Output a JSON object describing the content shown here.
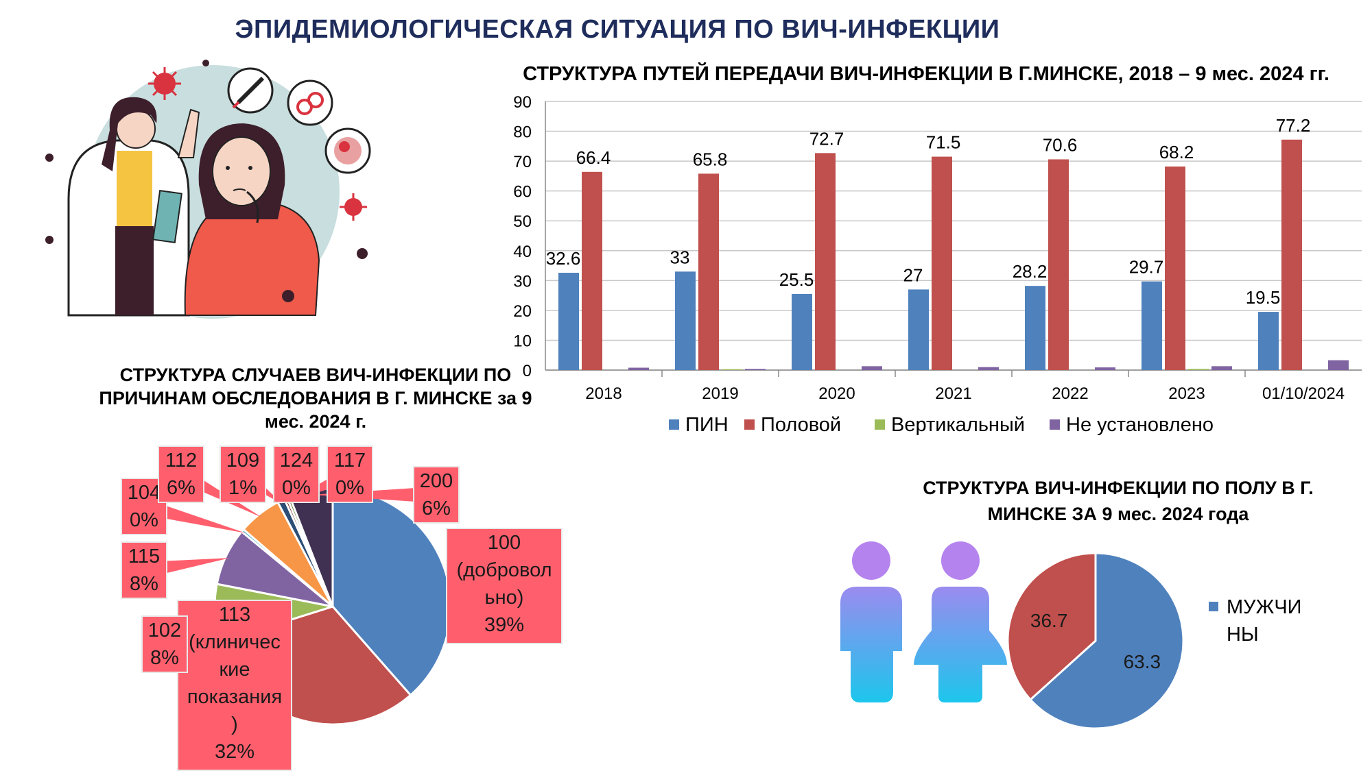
{
  "page": {
    "main_title": "ЭПИДЕМИОЛОГИЧЕСКАЯ СИТУАЦИЯ ПО ВИЧ-ИНФЕКЦИИ"
  },
  "colors": {
    "title_navy": "#1f2d5c",
    "blue": "#4f81bd",
    "red": "#c0504d",
    "green": "#9bbb59",
    "purple": "#8064a2",
    "callout": "#ff5f6d"
  },
  "illustration": {
    "description_icons": [
      "doctor-icon",
      "patient-icon",
      "syringe-icon",
      "gender-symbols-icon",
      "embryo-icon",
      "virus-icon"
    ]
  },
  "chart_data": [
    {
      "type": "bar",
      "title": "СТРУКТУРА ПУТЕЙ ПЕРЕДАЧИ ВИЧ-ИНФЕКЦИИ В Г.МИНСКЕ, 2018 – 9 мес. 2024 гг.",
      "categories": [
        "2018",
        "2019",
        "2020",
        "2021",
        "2022",
        "2023",
        "01/10/2024"
      ],
      "series": [
        {
          "name": "ПИН",
          "color": "#4f81bd",
          "values": [
            32.6,
            33,
            25.5,
            27,
            28.2,
            29.7,
            19.5
          ],
          "labels": [
            "32.6",
            "33",
            "25.5",
            "27",
            "28.2",
            "29.7",
            "19.5"
          ]
        },
        {
          "name": "Половой",
          "color": "#c0504d",
          "values": [
            66.4,
            65.8,
            72.7,
            71.5,
            70.6,
            68.2,
            77.2
          ],
          "labels": [
            "66.4",
            "65.8",
            "72.7",
            "71.5",
            "70.6",
            "68.2",
            "77.2"
          ]
        },
        {
          "name": "Вертикальный",
          "color": "#9bbb59",
          "values": [
            0,
            0.3,
            0,
            0,
            0,
            0.4,
            0
          ]
        },
        {
          "name": "Не установлено",
          "color": "#8064a2",
          "values": [
            0.8,
            0.4,
            1.3,
            1.0,
            0.9,
            1.3,
            3.3
          ]
        }
      ],
      "ylim": [
        0,
        90
      ],
      "yticks": [
        "0",
        "10",
        "20",
        "30",
        "40",
        "50",
        "60",
        "70",
        "80",
        "90"
      ],
      "grid": true,
      "legend": "bottom"
    },
    {
      "type": "pie",
      "title": "СТРУКТУРА СЛУЧАЕВ ВИЧ-ИНФЕКЦИИ ПО ПРИЧИНАМ ОБСЛЕДОВАНИЯ В Г. МИНСКЕ за 9 мес. 2024 г.",
      "slices": [
        {
          "code": "100 (доброволь но)",
          "label_lines": [
            "100",
            "(добровол",
            "ьно)",
            "39%"
          ],
          "value": 39,
          "color": "#4f81bd"
        },
        {
          "code": "113 (клинические показания)",
          "label_lines": [
            "113",
            "(клиничес",
            "кие",
            "показания",
            ")",
            "32%"
          ],
          "value": 32,
          "color": "#c0504d"
        },
        {
          "code": "102",
          "label_lines": [
            "102",
            "8%"
          ],
          "value": 8,
          "color": "#9bbb59"
        },
        {
          "code": "115",
          "label_lines": [
            "115",
            "8%"
          ],
          "value": 8,
          "color": "#8064a2"
        },
        {
          "code": "104",
          "label_lines": [
            "104",
            "0%"
          ],
          "value": 0.4,
          "color": "#4bacc6"
        },
        {
          "code": "112",
          "label_lines": [
            "112",
            "6%"
          ],
          "value": 6,
          "color": "#f79646"
        },
        {
          "code": "109",
          "label_lines": [
            "109",
            "1%"
          ],
          "value": 1,
          "color": "#2c4d75"
        },
        {
          "code": "124",
          "label_lines": [
            "124",
            "0%"
          ],
          "value": 0.4,
          "color": "#772c2a"
        },
        {
          "code": "117",
          "label_lines": [
            "117",
            "0%"
          ],
          "value": 0.4,
          "color": "#5f7530"
        },
        {
          "code": "200",
          "label_lines": [
            "200",
            "6%"
          ],
          "value": 6,
          "color": "#403152"
        }
      ]
    },
    {
      "type": "pie",
      "title": "СТРУКТУРА ВИЧ-ИНФЕКЦИИ ПО ПОЛУ В Г. МИНСКЕ ЗА 9 мес. 2024 года",
      "slices": [
        {
          "name": "МУЖЧИНЫ",
          "value": 63.3,
          "label": "63.3",
          "color": "#4f81bd"
        },
        {
          "name": "",
          "value": 36.7,
          "label": "36.7",
          "color": "#c0504d"
        }
      ],
      "legend": "right",
      "legend_lines": [
        "МУЖЧИ",
        "НЫ"
      ]
    }
  ]
}
